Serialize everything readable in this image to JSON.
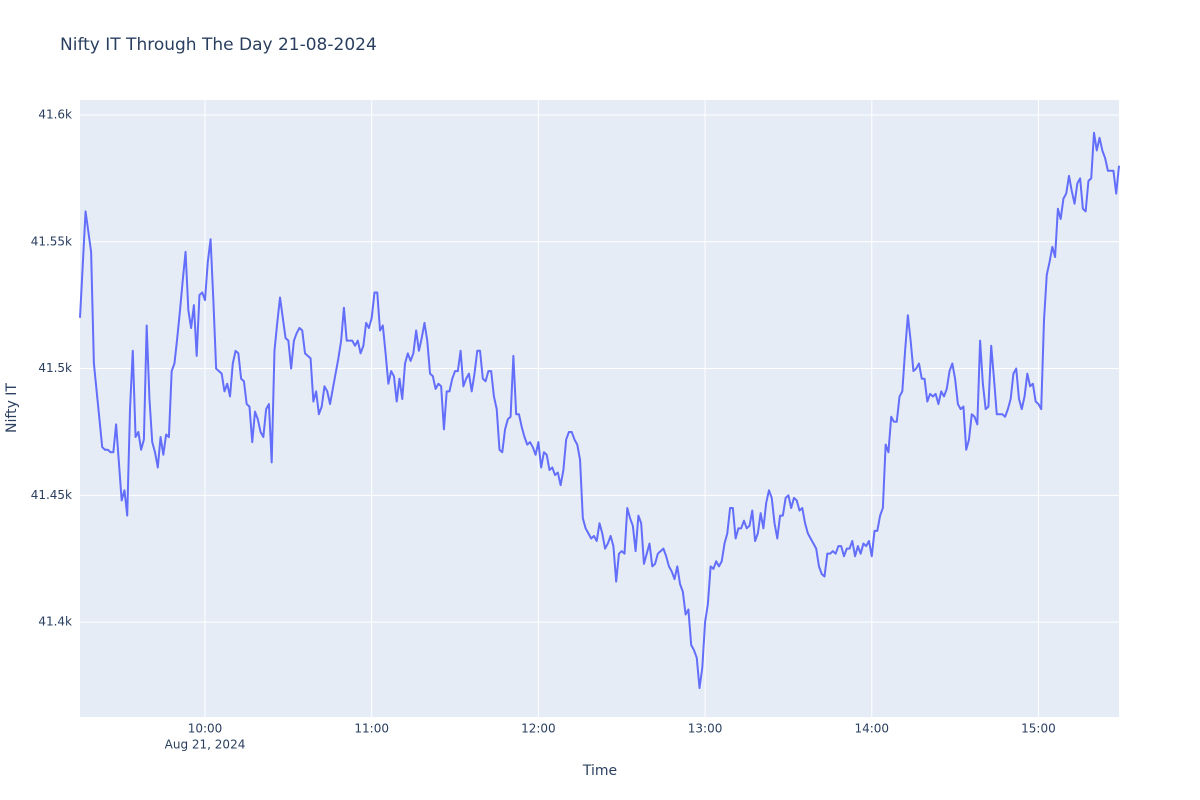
{
  "chart_data": {
    "type": "line",
    "title": "Nifty IT Through The Day 21-08-2024",
    "x_label": "Time",
    "y_label": "Nifty IT",
    "x_date": "Aug 21, 2024",
    "color": "#636efa",
    "grid": true,
    "xlim": [
      "09:15",
      "15:29"
    ],
    "xticks": [
      "10:00",
      "11:00",
      "12:00",
      "13:00",
      "14:00",
      "15:00"
    ],
    "ylim": [
      41362.6,
      41605.9
    ],
    "yticks": [
      {
        "value": 41400,
        "label": "41.4k"
      },
      {
        "value": 41450,
        "label": "41.45k"
      },
      {
        "value": 41500,
        "label": "41.5k"
      },
      {
        "value": 41550,
        "label": "41.55k"
      },
      {
        "value": 41600,
        "label": "41.6k"
      }
    ],
    "x": [
      "09:15",
      "09:16",
      "09:17",
      "09:18",
      "09:19",
      "09:20",
      "09:21",
      "09:22",
      "09:23",
      "09:24",
      "09:25",
      "09:26",
      "09:27",
      "09:28",
      "09:29",
      "09:30",
      "09:31",
      "09:32",
      "09:33",
      "09:34",
      "09:35",
      "09:36",
      "09:37",
      "09:38",
      "09:39",
      "09:40",
      "09:41",
      "09:42",
      "09:43",
      "09:44",
      "09:45",
      "09:46",
      "09:47",
      "09:48",
      "09:49",
      "09:50",
      "09:51",
      "09:52",
      "09:53",
      "09:54",
      "09:55",
      "09:56",
      "09:57",
      "09:58",
      "09:59",
      "10:00",
      "10:01",
      "10:02",
      "10:03",
      "10:04",
      "10:05",
      "10:06",
      "10:07",
      "10:08",
      "10:09",
      "10:10",
      "10:11",
      "10:12",
      "10:13",
      "10:14",
      "10:15",
      "10:16",
      "10:17",
      "10:18",
      "10:19",
      "10:20",
      "10:21",
      "10:22",
      "10:23",
      "10:24",
      "10:25",
      "10:26",
      "10:27",
      "10:28",
      "10:29",
      "10:30",
      "10:31",
      "10:32",
      "10:33",
      "10:34",
      "10:35",
      "10:36",
      "10:37",
      "10:38",
      "10:39",
      "10:40",
      "10:41",
      "10:42",
      "10:43",
      "10:44",
      "10:45",
      "10:46",
      "10:47",
      "10:48",
      "10:49",
      "10:50",
      "10:51",
      "10:52",
      "10:53",
      "10:54",
      "10:55",
      "10:56",
      "10:57",
      "10:58",
      "10:59",
      "11:00",
      "11:01",
      "11:02",
      "11:03",
      "11:04",
      "11:05",
      "11:06",
      "11:07",
      "11:08",
      "11:09",
      "11:10",
      "11:11",
      "11:12",
      "11:13",
      "11:14",
      "11:15",
      "11:16",
      "11:17",
      "11:18",
      "11:19",
      "11:20",
      "11:21",
      "11:22",
      "11:23",
      "11:24",
      "11:25",
      "11:26",
      "11:27",
      "11:28",
      "11:29",
      "11:30",
      "11:31",
      "11:32",
      "11:33",
      "11:34",
      "11:35",
      "11:36",
      "11:37",
      "11:38",
      "11:39",
      "11:40",
      "11:41",
      "11:42",
      "11:43",
      "11:44",
      "11:45",
      "11:46",
      "11:47",
      "11:48",
      "11:49",
      "11:50",
      "11:51",
      "11:52",
      "11:53",
      "11:54",
      "11:55",
      "11:56",
      "11:57",
      "11:58",
      "11:59",
      "12:00",
      "12:01",
      "12:02",
      "12:03",
      "12:04",
      "12:05",
      "12:06",
      "12:07",
      "12:08",
      "12:09",
      "12:10",
      "12:11",
      "12:12",
      "12:13",
      "12:14",
      "12:15",
      "12:16",
      "12:17",
      "12:18",
      "12:19",
      "12:20",
      "12:21",
      "12:22",
      "12:23",
      "12:24",
      "12:25",
      "12:26",
      "12:27",
      "12:28",
      "12:29",
      "12:30",
      "12:31",
      "12:32",
      "12:33",
      "12:34",
      "12:35",
      "12:36",
      "12:37",
      "12:38",
      "12:39",
      "12:40",
      "12:41",
      "12:42",
      "12:43",
      "12:44",
      "12:45",
      "12:46",
      "12:47",
      "12:48",
      "12:49",
      "12:50",
      "12:51",
      "12:52",
      "12:53",
      "12:54",
      "12:55",
      "12:56",
      "12:57",
      "12:58",
      "12:59",
      "13:00",
      "13:01",
      "13:02",
      "13:03",
      "13:04",
      "13:05",
      "13:06",
      "13:07",
      "13:08",
      "13:09",
      "13:10",
      "13:11",
      "13:12",
      "13:13",
      "13:14",
      "13:15",
      "13:16",
      "13:17",
      "13:18",
      "13:19",
      "13:20",
      "13:21",
      "13:22",
      "13:23",
      "13:24",
      "13:25",
      "13:26",
      "13:27",
      "13:28",
      "13:29",
      "13:30",
      "13:31",
      "13:32",
      "13:33",
      "13:34",
      "13:35",
      "13:36",
      "13:37",
      "13:38",
      "13:39",
      "13:40",
      "13:41",
      "13:42",
      "13:43",
      "13:44",
      "13:45",
      "13:46",
      "13:47",
      "13:48",
      "13:49",
      "13:50",
      "13:51",
      "13:52",
      "13:53",
      "13:54",
      "13:55",
      "13:56",
      "13:57",
      "13:58",
      "13:59",
      "14:00",
      "14:01",
      "14:02",
      "14:03",
      "14:04",
      "14:05",
      "14:06",
      "14:07",
      "14:08",
      "14:09",
      "14:10",
      "14:11",
      "14:12",
      "14:13",
      "14:14",
      "14:15",
      "14:16",
      "14:17",
      "14:18",
      "14:19",
      "14:20",
      "14:21",
      "14:22",
      "14:23",
      "14:24",
      "14:25",
      "14:26",
      "14:27",
      "14:28",
      "14:29",
      "14:30",
      "14:31",
      "14:32",
      "14:33",
      "14:34",
      "14:35",
      "14:36",
      "14:37",
      "14:38",
      "14:39",
      "14:40",
      "14:41",
      "14:42",
      "14:43",
      "14:44",
      "14:45",
      "14:46",
      "14:47",
      "14:48",
      "14:49",
      "14:50",
      "14:51",
      "14:52",
      "14:53",
      "14:54",
      "14:55",
      "14:56",
      "14:57",
      "14:58",
      "14:59",
      "15:00",
      "15:01",
      "15:02",
      "15:03",
      "15:04",
      "15:05",
      "15:06",
      "15:07",
      "15:08",
      "15:09",
      "15:10",
      "15:11",
      "15:12",
      "15:13",
      "15:14",
      "15:15",
      "15:16",
      "15:17",
      "15:18",
      "15:19",
      "15:20",
      "15:21",
      "15:22",
      "15:23",
      "15:24",
      "15:25",
      "15:26",
      "15:27",
      "15:28",
      "15:29"
    ],
    "values": [
      41520,
      41541,
      41562,
      41554,
      41546,
      41502,
      41491,
      41480,
      41469,
      41468,
      41468,
      41467,
      41467,
      41478,
      41463,
      41448,
      41452,
      41442,
      41484,
      41507,
      41473,
      41475,
      41468,
      41472,
      41517,
      41488,
      41471,
      41467,
      41461,
      41473,
      41466,
      41474,
      41473,
      41499,
      41502,
      41512,
      41523,
      41535,
      41546,
      41523,
      41516,
      41525,
      41505,
      41529,
      41530,
      41527,
      41542,
      41551,
      41527,
      41500,
      41499,
      41498,
      41491,
      41494,
      41489,
      41502,
      41507,
      41506,
      41496,
      41495,
      41486,
      41485,
      41471,
      41483,
      41480,
      41475,
      41473,
      41484,
      41486,
      41463,
      41507,
      41518,
      41528,
      41520,
      41512,
      41511,
      41500,
      41511,
      41514,
      41516,
      41515,
      41506,
      41505,
      41504,
      41487,
      41491,
      41482,
      41485,
      41493,
      41491,
      41486,
      41492,
      41498,
      41504,
      41511,
      41524,
      41511,
      41511,
      41511,
      41509,
      41511,
      41506,
      41509,
      41518,
      41516,
      41520,
      41530,
      41530,
      41515,
      41517,
      41506,
      41494,
      41499,
      41497,
      41487,
      41496,
      41488,
      41502,
      41506,
      41503,
      41506,
      41515,
      41507,
      41512,
      41518,
      41511,
      41498,
      41497,
      41492,
      41494,
      41493,
      41476,
      41491,
      41491,
      41496,
      41499,
      41499,
      41507,
      41493,
      41496,
      41498,
      41491,
      41498,
      41507,
      41507,
      41496,
      41495,
      41499,
      41499,
      41489,
      41484,
      41468,
      41467,
      41476,
      41480,
      41481,
      41505,
      41482,
      41482,
      41477,
      41473,
      41470,
      41471,
      41469,
      41466,
      41471,
      41461,
      41467,
      41466,
      41460,
      41461,
      41458,
      41459,
      41454,
      41460,
      41472,
      41475,
      41475,
      41472,
      41470,
      41464,
      41441,
      41437,
      41435,
      41433,
      41434,
      41432,
      41439,
      41435,
      41429,
      41431,
      41434,
      41430,
      41416,
      41427,
      41428,
      41427,
      41445,
      41441,
      41438,
      41428,
      41442,
      41439,
      41423,
      41427,
      41431,
      41422,
      41423,
      41427,
      41428,
      41429,
      41426,
      41422,
      41420,
      41417,
      41422,
      41415,
      41412,
      41403,
      41405,
      41391,
      41389,
      41386,
      41374,
      41382,
      41400,
      41407,
      41422,
      41421,
      41424,
      41422,
      41424,
      41431,
      41435,
      41445,
      41445,
      41433,
      41437,
      41437,
      41440,
      41437,
      41438,
      41444,
      41432,
      41435,
      41443,
      41437,
      41447,
      41452,
      41449,
      41439,
      41433,
      41442,
      41442,
      41449,
      41450,
      41445,
      41449,
      41448,
      41444,
      41445,
      41439,
      41435,
      41433,
      41431,
      41429,
      41422,
      41419,
      41418,
      41427,
      41427,
      41428,
      41427,
      41430,
      41430,
      41426,
      41429,
      41429,
      41432,
      41426,
      41430,
      41427,
      41431,
      41430,
      41432,
      41426,
      41436,
      41436,
      41442,
      41445,
      41470,
      41467,
      41481,
      41479,
      41479,
      41489,
      41491,
      41507,
      41521,
      41511,
      41499,
      41500,
      41502,
      41496,
      41496,
      41487,
      41490,
      41489,
      41490,
      41486,
      41491,
      41489,
      41492,
      41499,
      41502,
      41496,
      41486,
      41484,
      41485,
      41468,
      41472,
      41482,
      41481,
      41478,
      41511,
      41494,
      41484,
      41485,
      41509,
      41496,
      41482,
      41482,
      41482,
      41481,
      41484,
      41488,
      41498,
      41500,
      41488,
      41484,
      41489,
      41498,
      41493,
      41494,
      41487,
      41486,
      41484,
      41519,
      41537,
      41542,
      41548,
      41544,
      41563,
      41559,
      41567,
      41569,
      41576,
      41570,
      41565,
      41573,
      41575,
      41563,
      41562,
      41574,
      41575,
      41593,
      41586,
      41591,
      41586,
      41583,
      41578,
      41578,
      41578,
      41569,
      41580
    ]
  }
}
